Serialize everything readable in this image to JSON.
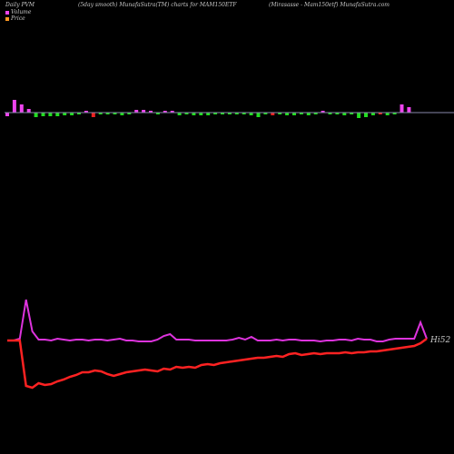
{
  "header": {
    "left": "Daily PVM",
    "center": "(5day smooth) MunafaSutra(TM) charts for MAM150ETF",
    "right": "(Mirasasse - Mam150etf) MunafaSutra.com"
  },
  "colors": {
    "background": "#000000",
    "volume_up": "#ee44ee",
    "volume_down": "#22dd22",
    "volume_red": "#ee2222",
    "volume_line": "#8888aa",
    "price_line": "#ff2222",
    "vwap_line": "#dd33dd",
    "text": "#c8c8c8"
  },
  "legend": [
    {
      "label": "Volume",
      "color": "#ee44ee"
    },
    {
      "label": "Price",
      "color": "#ff9922"
    }
  ],
  "chart_data": {
    "type": "line",
    "title": "(5day smooth) MunafaSutra(TM) charts for MAM150ETF",
    "last_price_label": "Hi52",
    "volume": {
      "bars": [
        {
          "v": -4,
          "c": "up"
        },
        {
          "v": 14,
          "c": "up"
        },
        {
          "v": 9,
          "c": "up"
        },
        {
          "v": 4,
          "c": "up"
        },
        {
          "v": -5,
          "c": "down"
        },
        {
          "v": -4,
          "c": "down"
        },
        {
          "v": -4,
          "c": "down"
        },
        {
          "v": -4,
          "c": "down"
        },
        {
          "v": -3,
          "c": "down"
        },
        {
          "v": -3,
          "c": "down"
        },
        {
          "v": -2,
          "c": "down"
        },
        {
          "v": 2,
          "c": "up"
        },
        {
          "v": -5,
          "c": "red"
        },
        {
          "v": -2,
          "c": "down"
        },
        {
          "v": -2,
          "c": "down"
        },
        {
          "v": -2,
          "c": "down"
        },
        {
          "v": -3,
          "c": "down"
        },
        {
          "v": -2,
          "c": "down"
        },
        {
          "v": 3,
          "c": "up"
        },
        {
          "v": 3,
          "c": "up"
        },
        {
          "v": 2,
          "c": "up"
        },
        {
          "v": -2,
          "c": "down"
        },
        {
          "v": 2,
          "c": "up"
        },
        {
          "v": 2,
          "c": "up"
        },
        {
          "v": -3,
          "c": "down"
        },
        {
          "v": -2,
          "c": "down"
        },
        {
          "v": -3,
          "c": "down"
        },
        {
          "v": -3,
          "c": "down"
        },
        {
          "v": -3,
          "c": "down"
        },
        {
          "v": -2,
          "c": "down"
        },
        {
          "v": -2,
          "c": "down"
        },
        {
          "v": -2,
          "c": "down"
        },
        {
          "v": -2,
          "c": "down"
        },
        {
          "v": -2,
          "c": "down"
        },
        {
          "v": -3,
          "c": "down"
        },
        {
          "v": -5,
          "c": "down"
        },
        {
          "v": -2,
          "c": "down"
        },
        {
          "v": -3,
          "c": "red"
        },
        {
          "v": -2,
          "c": "down"
        },
        {
          "v": -3,
          "c": "down"
        },
        {
          "v": -3,
          "c": "down"
        },
        {
          "v": -2,
          "c": "down"
        },
        {
          "v": -3,
          "c": "down"
        },
        {
          "v": -2,
          "c": "down"
        },
        {
          "v": 2,
          "c": "up"
        },
        {
          "v": -2,
          "c": "down"
        },
        {
          "v": -2,
          "c": "down"
        },
        {
          "v": -3,
          "c": "down"
        },
        {
          "v": -2,
          "c": "down"
        },
        {
          "v": -6,
          "c": "down"
        },
        {
          "v": -5,
          "c": "down"
        },
        {
          "v": -3,
          "c": "down"
        },
        {
          "v": -2,
          "c": "red"
        },
        {
          "v": -3,
          "c": "down"
        },
        {
          "v": -2,
          "c": "down"
        },
        {
          "v": 9,
          "c": "up"
        },
        {
          "v": 6,
          "c": "up"
        }
      ]
    },
    "series": [
      {
        "key": "vwap",
        "values": [
          375,
          375,
          373,
          330,
          365,
          374,
          374,
          375,
          373,
          374,
          375,
          374,
          374,
          375,
          374,
          374,
          375,
          374,
          373,
          375,
          375,
          376,
          376,
          376,
          374,
          370,
          368,
          374,
          374,
          374,
          375,
          375,
          375,
          375,
          375,
          375,
          374,
          372,
          374,
          371,
          375,
          375,
          375,
          374,
          375,
          374,
          374,
          375,
          375,
          375,
          376,
          375,
          375,
          374,
          374,
          375,
          373,
          374,
          374,
          376,
          376,
          374,
          373,
          373,
          373,
          373,
          355,
          373
        ]
      },
      {
        "key": "price",
        "values": [
          375,
          375,
          375,
          425,
          427,
          422,
          424,
          423,
          420,
          418,
          415,
          413,
          410,
          410,
          408,
          409,
          412,
          414,
          412,
          410,
          409,
          408,
          407,
          408,
          409,
          406,
          407,
          404,
          405,
          404,
          405,
          402,
          401,
          402,
          400,
          399,
          398,
          397,
          396,
          395,
          394,
          394,
          393,
          392,
          393,
          390,
          389,
          391,
          390,
          389,
          390,
          389,
          389,
          389,
          388,
          389,
          388,
          388,
          387,
          387,
          386,
          385,
          384,
          383,
          382,
          381,
          378,
          373
        ]
      }
    ]
  }
}
